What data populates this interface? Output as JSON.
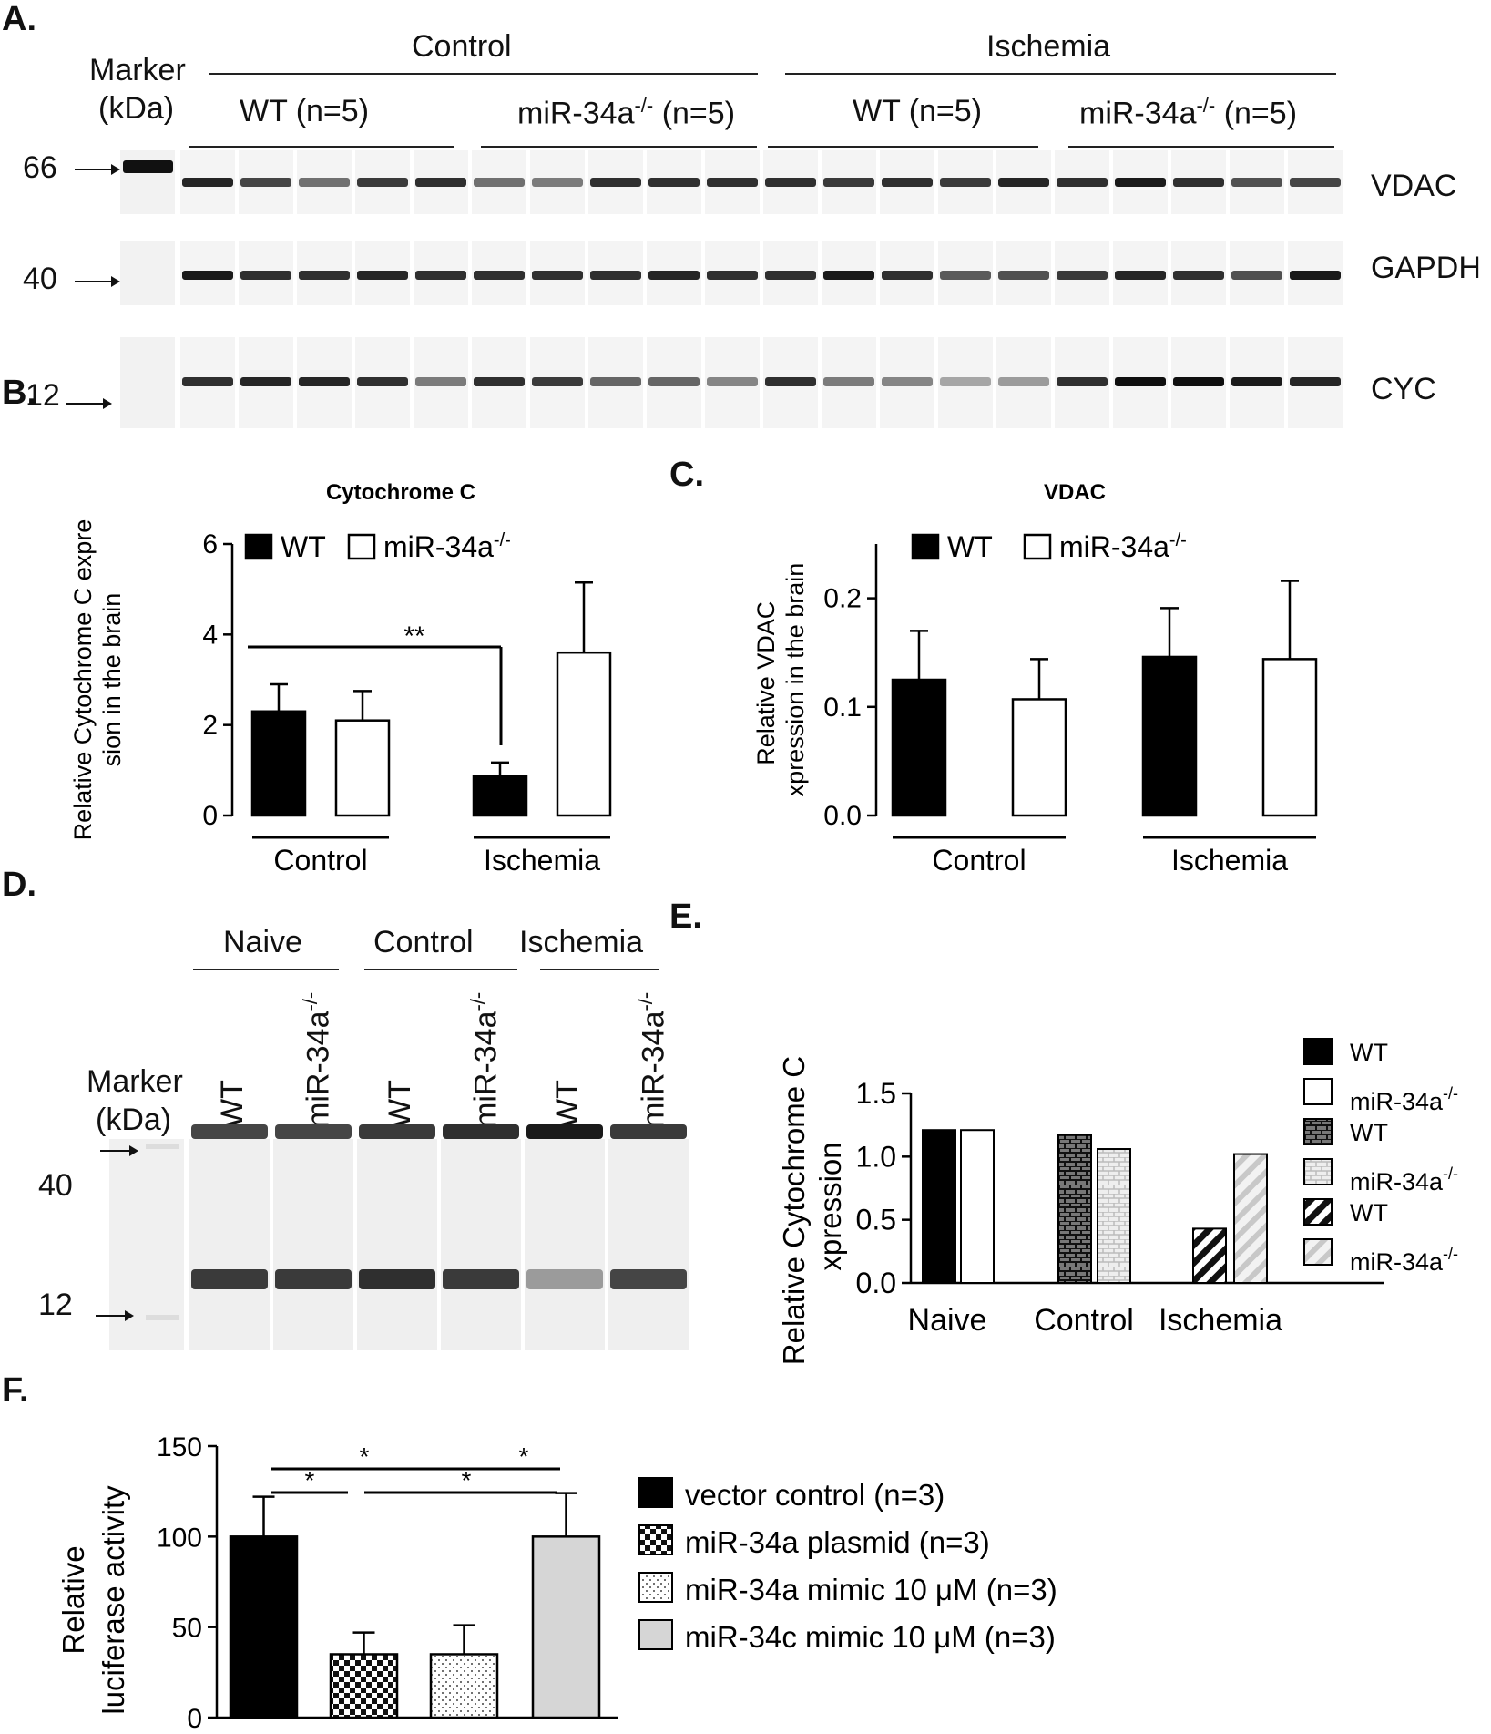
{
  "panels": {
    "a": "A.",
    "b": "B.",
    "c": "C.",
    "d": "D.",
    "e": "E.",
    "f": "F."
  },
  "panelA": {
    "marker_label": "Marker",
    "marker_unit": "(kDa)",
    "group_control": "Control",
    "group_ischemia": "Ischemia",
    "sub_labels": [
      "WT (n=5)",
      "miR-34a",
      "(n=5)",
      "WT (n=5)",
      "miR-34a",
      "(n=5)"
    ],
    "ko_superscript": "-/-",
    "marker_kda": [
      "66",
      "40",
      "12"
    ],
    "proteins": [
      "VDAC",
      "GAPDH",
      "CYC"
    ],
    "vdac_intensity": [
      0.9,
      0.75,
      0.55,
      0.8,
      0.85,
      0.55,
      0.5,
      0.85,
      0.85,
      0.85,
      0.85,
      0.8,
      0.85,
      0.8,
      0.9,
      0.85,
      0.95,
      0.85,
      0.7,
      0.75
    ],
    "gapdh_intensity": [
      0.95,
      0.85,
      0.85,
      0.9,
      0.85,
      0.85,
      0.85,
      0.85,
      0.9,
      0.85,
      0.85,
      0.95,
      0.85,
      0.65,
      0.7,
      0.8,
      0.9,
      0.85,
      0.7,
      0.95
    ],
    "cyc_intensity": [
      0.85,
      0.9,
      0.9,
      0.85,
      0.5,
      0.85,
      0.8,
      0.6,
      0.6,
      0.45,
      0.85,
      0.5,
      0.45,
      0.3,
      0.35,
      0.85,
      1.0,
      1.0,
      0.95,
      0.9
    ]
  },
  "panelD": {
    "marker_label": "Marker",
    "marker_unit": "(kDa)",
    "groups": [
      "Naive",
      "Control",
      "Ischemia"
    ],
    "lanes": [
      "WT",
      "miR-34a",
      "WT",
      "miR-34a",
      "WT",
      "miR-34a"
    ],
    "ko_superscript": "-/-",
    "marker_kda": [
      "40",
      "12"
    ],
    "upper_intensity": [
      0.75,
      0.75,
      0.8,
      0.85,
      0.95,
      0.8
    ],
    "lower_intensity": [
      0.8,
      0.8,
      0.85,
      0.8,
      0.35,
      0.75
    ]
  },
  "chart_data": [
    {
      "id": "B",
      "type": "bar",
      "title": "Cytochrome C",
      "ylabel": "Relative Cytochrome C expression in the brain",
      "categories": [
        "Control",
        "Ischemia"
      ],
      "ylim": [
        0,
        6
      ],
      "yticks": [
        "0",
        "2",
        "4",
        "6"
      ],
      "series": [
        {
          "name": "WT",
          "values": [
            2.3,
            0.87
          ],
          "errors": [
            0.6,
            0.3
          ],
          "color": "#000000"
        },
        {
          "name": "miR-34a",
          "values": [
            2.1,
            3.6
          ],
          "errors": [
            0.65,
            1.55
          ],
          "color": "#ffffff"
        }
      ],
      "legend_super": "-/-",
      "annotation": "**"
    },
    {
      "id": "C",
      "type": "bar",
      "title": "VDAC",
      "ylabel": "Relative VDAC expression in the brain",
      "categories": [
        "Control",
        "Ischemia"
      ],
      "ylim": [
        0,
        0.25
      ],
      "yticks": [
        "0.0",
        "0.1",
        "0.2"
      ],
      "series": [
        {
          "name": "WT",
          "values": [
            0.125,
            0.146
          ],
          "errors": [
            0.045,
            0.045
          ],
          "color": "#000000"
        },
        {
          "name": "miR-34a",
          "values": [
            0.107,
            0.144
          ],
          "errors": [
            0.037,
            0.072
          ],
          "color": "#ffffff"
        }
      ],
      "legend_super": "-/-"
    },
    {
      "id": "E",
      "type": "bar",
      "ylabel": "Relative Cytochrome C expression",
      "categories": [
        "Naive",
        "Control",
        "Ischemia"
      ],
      "ylim": [
        0,
        1.5
      ],
      "yticks": [
        "0.0",
        "0.5",
        "1.0",
        "1.5"
      ],
      "bars": [
        {
          "category": "Naive",
          "name": "WT",
          "value": 1.21,
          "pattern": "solid-black"
        },
        {
          "category": "Naive",
          "name": "miR-34a",
          "value": 1.21,
          "pattern": "white"
        },
        {
          "category": "Control",
          "name": "WT",
          "value": 1.17,
          "pattern": "brick"
        },
        {
          "category": "Control",
          "name": "miR-34a",
          "value": 1.06,
          "pattern": "light-brick"
        },
        {
          "category": "Ischemia",
          "name": "WT",
          "value": 0.43,
          "pattern": "hatch-dark"
        },
        {
          "category": "Ischemia",
          "name": "miR-34a",
          "value": 1.02,
          "pattern": "hatch-light"
        }
      ],
      "legend_super": "-/-"
    },
    {
      "id": "F",
      "type": "bar",
      "ylabel": "Relative luciferase activity",
      "ylim": [
        0,
        150
      ],
      "yticks": [
        "0",
        "50",
        "100",
        "150"
      ],
      "categories": [
        "vector control (n=3)",
        "miR-34a plasmid (n=3)",
        "miR-34a mimic 10 μM (n=3)",
        "miR-34c mimic 10 μM (n=3)"
      ],
      "values": [
        100,
        35,
        35,
        100
      ],
      "errors": [
        22,
        12,
        16,
        24
      ],
      "patterns": [
        "solid-black",
        "checker",
        "dots",
        "light-gray"
      ],
      "annotations": [
        "*",
        "*",
        "*",
        "*"
      ]
    }
  ]
}
